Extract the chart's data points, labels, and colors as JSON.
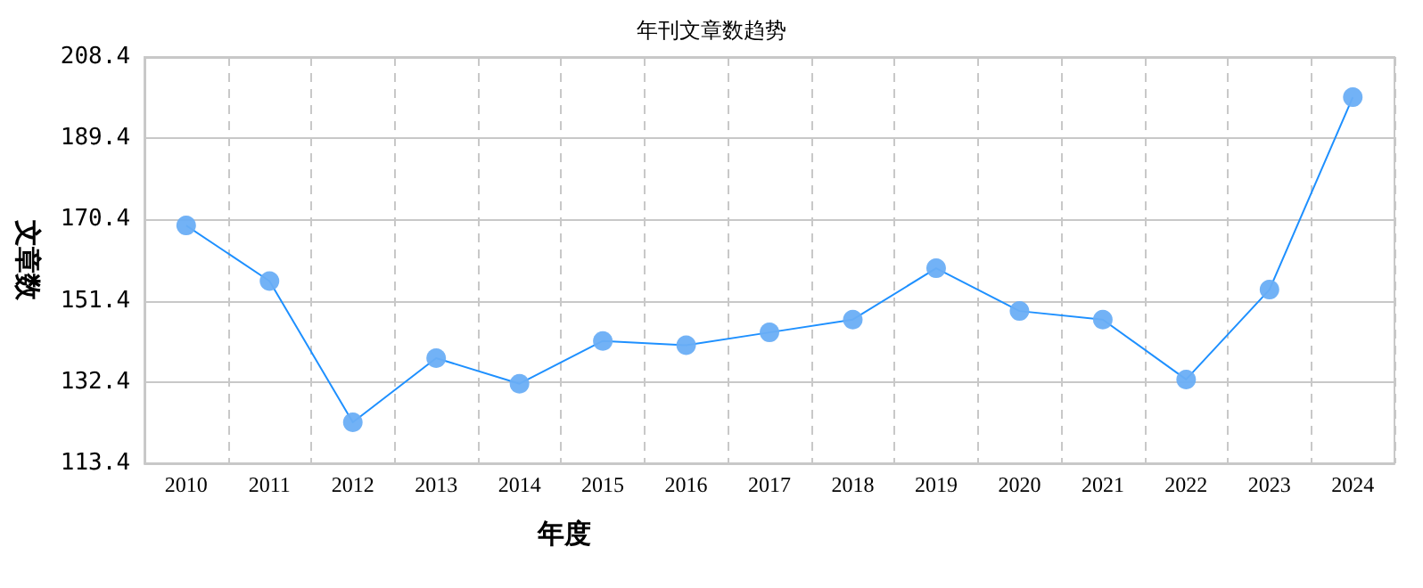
{
  "chart_data": {
    "type": "line",
    "title": "年刊文章数趋势",
    "xlabel": "年度",
    "ylabel": "文章数",
    "categories": [
      "2010",
      "2011",
      "2012",
      "2013",
      "2014",
      "2015",
      "2016",
      "2017",
      "2018",
      "2019",
      "2020",
      "2021",
      "2022",
      "2023",
      "2024"
    ],
    "series": [
      {
        "color": "#1e90ff",
        "values": [
          169,
          156,
          123,
          138,
          132,
          142,
          141,
          144,
          147,
          159,
          149,
          147,
          133,
          154,
          199
        ]
      }
    ],
    "ylim": [
      113.4,
      208.4
    ],
    "yticks": [
      113.4,
      132.4,
      151.4,
      170.4,
      189.4,
      208.4
    ],
    "grid": true,
    "marker": "circle",
    "line_style": "solid"
  }
}
